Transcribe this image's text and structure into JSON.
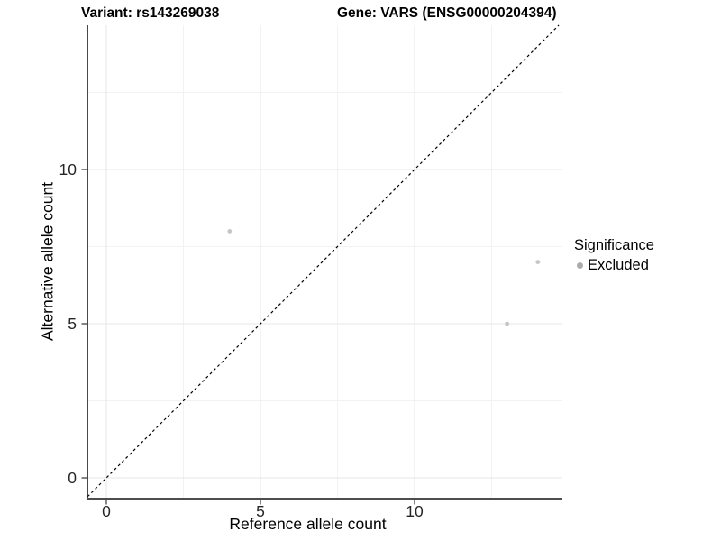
{
  "figure": {
    "title_left": "Variant: rs143269038",
    "title_right": "Gene: VARS (ENSG00000204394)"
  },
  "chart_data": {
    "type": "scatter",
    "title": "Variant: rs143269038   Gene: VARS (ENSG00000204394)",
    "xlabel": "Reference allele count",
    "ylabel": "Alternative allele count",
    "xlim": [
      -0.61,
      14.79
    ],
    "ylim": [
      -0.67,
      14.68
    ],
    "grid": true,
    "x_major_ticks": [
      0,
      5,
      10
    ],
    "x_tick_labels": [
      "0",
      "5",
      "10"
    ],
    "x_minor_ticks": [
      2.5,
      7.5,
      12.5
    ],
    "y_major_ticks": [
      0,
      5,
      10
    ],
    "y_tick_labels": [
      "0",
      "5",
      "10"
    ],
    "y_minor_ticks": [
      2.5,
      7.5,
      12.5
    ],
    "series": [
      {
        "name": "Excluded",
        "color": "#c6c6c6",
        "points": [
          {
            "x": 4,
            "y": 8
          },
          {
            "x": 13,
            "y": 5
          },
          {
            "x": 14,
            "y": 7
          }
        ]
      }
    ],
    "reference_line": {
      "type": "identity y=x",
      "style": "dashed",
      "color": "#000000",
      "from": -0.61,
      "to": 14.68
    },
    "legend": {
      "position": "right",
      "title": "Significance",
      "items": [
        {
          "label": "Excluded",
          "color": "#ababab"
        }
      ]
    },
    "style": {
      "major_grid_color": "#e7e7e7",
      "minor_grid_color": "#f2f2f2",
      "y_axis_line_color": "#1a1a1a",
      "x_axis_line_color": "#4d4d4d",
      "tick_color": "#333333",
      "tick_label_color": "#262626"
    }
  }
}
